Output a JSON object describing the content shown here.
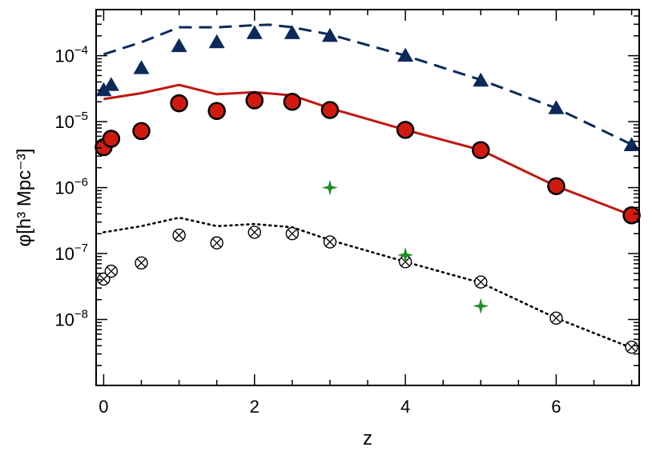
{
  "chart_data": {
    "type": "scatter",
    "title": "",
    "xlabel": "z",
    "ylabel": "φ[h³ Mpc⁻³]",
    "y_scale": "log",
    "xlim": [
      -0.1,
      7.1
    ],
    "ylim": [
      1e-09,
      0.0005
    ],
    "x_ticks": [
      0,
      2,
      4,
      6
    ],
    "x_tick_labels": [
      "0",
      "2",
      "4",
      "6"
    ],
    "y_ticks": [
      1e-08,
      1e-07,
      1e-06,
      1e-05,
      0.0001
    ],
    "y_tick_labels": [
      {
        "base": "10",
        "exp": "−8"
      },
      {
        "base": "10",
        "exp": "−7"
      },
      {
        "base": "10",
        "exp": "−6"
      },
      {
        "base": "10",
        "exp": "−5"
      },
      {
        "base": "10",
        "exp": "−4"
      }
    ],
    "grid": false,
    "legend": "none",
    "series": [
      {
        "style": "dashed-line",
        "color": "#0b2a5a",
        "x": [
          0,
          0.5,
          1.0,
          1.5,
          2.0,
          2.2,
          2.5,
          3.0,
          4.0,
          5.0,
          6.0,
          7.0
        ],
        "y": [
          0.000105,
          0.00016,
          0.00027,
          0.00027,
          0.00029,
          0.000295,
          0.00027,
          0.00021,
          0.0001,
          4.3e-05,
          1.6e-05,
          4.5e-06
        ]
      },
      {
        "style": "triangles",
        "color": "#0b2a5a",
        "x": [
          0,
          0.1,
          0.5,
          1.0,
          1.5,
          2.0,
          2.5,
          3.0,
          4.0,
          5.0,
          6.0,
          7.0
        ],
        "y": [
          3e-05,
          3.6e-05,
          6.5e-05,
          0.00014,
          0.00016,
          0.00022,
          0.00022,
          0.0002,
          0.0001,
          4.2e-05,
          1.6e-05,
          4.4e-06
        ]
      },
      {
        "style": "solid-line",
        "color": "#c0170f",
        "x": [
          0,
          0.5,
          1.0,
          1.5,
          2.0,
          2.5,
          3.0,
          4.0,
          5.0,
          6.0,
          7.0
        ],
        "y": [
          2.2e-05,
          2.7e-05,
          3.6e-05,
          2.6e-05,
          2.8e-05,
          2.5e-05,
          1.6e-05,
          7.5e-06,
          3.7e-06,
          1.05e-06,
          3.8e-07
        ]
      },
      {
        "style": "red-circles",
        "color": "#d0190f",
        "x": [
          0,
          0.1,
          0.5,
          1.0,
          1.5,
          2.0,
          2.5,
          3.0,
          4.0,
          5.0,
          6.0,
          7.0
        ],
        "y": [
          4.1e-06,
          5.5e-06,
          7.2e-06,
          1.9e-05,
          1.45e-05,
          2.1e-05,
          2e-05,
          1.5e-05,
          7.5e-06,
          3.7e-06,
          1.05e-06,
          3.8e-07
        ]
      },
      {
        "style": "dotted-line",
        "color": "#000000",
        "x": [
          0,
          0.5,
          1.0,
          1.5,
          2.0,
          2.5,
          3.0,
          4.0,
          5.0,
          6.0,
          7.0
        ],
        "y": [
          2.1e-07,
          2.6e-07,
          3.5e-07,
          2.6e-07,
          2.8e-07,
          2.5e-07,
          1.6e-07,
          7.5e-08,
          3.6e-08,
          1.05e-08,
          3.7e-09
        ]
      },
      {
        "style": "crossed-circles",
        "color": "#000000",
        "x": [
          0,
          0.1,
          0.5,
          1.0,
          1.5,
          2.0,
          2.5,
          3.0,
          4.0,
          5.0,
          6.0,
          7.0
        ],
        "y": [
          4.1e-08,
          5.4e-08,
          7.2e-08,
          1.9e-07,
          1.45e-07,
          2.1e-07,
          2e-07,
          1.5e-07,
          7.5e-08,
          3.7e-08,
          1.05e-08,
          3.8e-09
        ]
      },
      {
        "style": "green-stars",
        "color": "#1f8f2a",
        "x": [
          3.0,
          4.0,
          5.0
        ],
        "y": [
          1e-06,
          9.5e-08,
          1.6e-08
        ]
      }
    ]
  }
}
